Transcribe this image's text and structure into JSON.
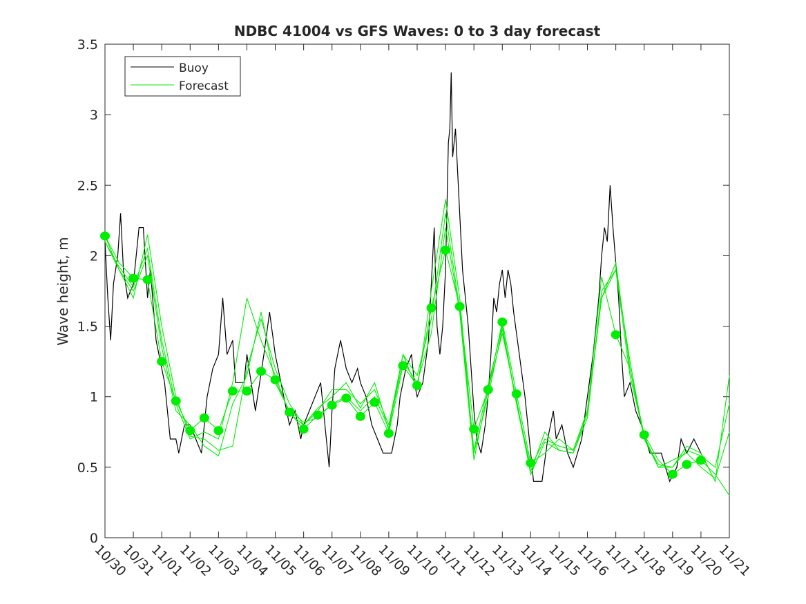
{
  "chart_data": {
    "type": "line",
    "title": "NDBC 41004 vs GFS Waves: 0 to 3 day forecast",
    "xlabel": "",
    "ylabel": "Wave height, m",
    "ylim": [
      0,
      3.5
    ],
    "yticks": [
      "0",
      "0.5",
      "1",
      "1.5",
      "2",
      "2.5",
      "3",
      "3.5"
    ],
    "xlim_days": [
      0,
      22
    ],
    "xticks": [
      "10/30",
      "10/31",
      "11/01",
      "11/02",
      "11/03",
      "11/04",
      "11/05",
      "11/06",
      "11/07",
      "11/08",
      "11/09",
      "11/10",
      "11/11",
      "11/12",
      "11/13",
      "11/14",
      "11/15",
      "11/16",
      "11/17",
      "11/18",
      "11/19",
      "11/20",
      "11/21"
    ],
    "legend": {
      "placement": "top-left",
      "entries": [
        "Buoy",
        "Forecast"
      ]
    },
    "colors": {
      "buoy": "#000000",
      "forecast": "#00ee00"
    },
    "buoy": {
      "x_days": [
        0,
        0.1,
        0.2,
        0.3,
        0.45,
        0.55,
        0.65,
        0.8,
        1.0,
        1.1,
        1.2,
        1.35,
        1.5,
        1.6,
        1.8,
        2.0,
        2.1,
        2.2,
        2.3,
        2.5,
        2.6,
        2.8,
        3.0,
        3.2,
        3.4,
        3.6,
        3.8,
        4.0,
        4.15,
        4.3,
        4.5,
        4.6,
        4.9,
        5.0,
        5.3,
        5.6,
        5.8,
        6.0,
        6.3,
        6.5,
        6.7,
        6.9,
        7.0,
        7.2,
        7.4,
        7.6,
        7.7,
        7.8,
        7.9,
        8.0,
        8.1,
        8.2,
        8.3,
        8.5,
        8.7,
        8.9,
        9.0,
        9.2,
        9.4,
        9.6,
        9.8,
        10.1,
        10.3,
        10.4,
        10.6,
        10.8,
        10.9,
        11.0,
        11.2,
        11.4,
        11.5,
        11.6,
        11.7,
        11.8,
        11.9,
        12.0,
        12.1,
        12.15,
        12.2,
        12.25,
        12.35,
        12.5,
        12.6,
        12.8,
        13.0,
        13.1,
        13.25,
        13.4,
        13.5,
        13.6,
        13.7,
        13.8,
        13.9,
        14.0,
        14.1,
        14.2,
        14.3,
        14.4,
        14.6,
        14.8,
        15.0,
        15.1,
        15.4,
        15.6,
        15.8,
        15.9,
        16.1,
        16.3,
        16.5,
        16.8,
        17.0,
        17.2,
        17.4,
        17.5,
        17.6,
        17.7,
        17.8,
        17.9,
        18.1,
        18.2,
        18.3,
        18.5,
        18.7,
        18.9,
        19.2,
        19.6,
        19.9,
        20.15,
        20.3,
        20.5,
        20.75,
        21.0,
        21.25
      ],
      "values": [
        2.1,
        1.7,
        1.4,
        1.8,
        2.0,
        2.3,
        1.9,
        1.7,
        1.8,
        2.0,
        2.2,
        2.2,
        1.7,
        1.9,
        1.4,
        1.2,
        1.1,
        0.9,
        0.7,
        0.7,
        0.6,
        0.8,
        0.8,
        0.7,
        0.6,
        1.0,
        1.2,
        1.3,
        1.7,
        1.3,
        1.4,
        1.1,
        1.1,
        1.3,
        0.9,
        1.3,
        1.6,
        1.3,
        1.0,
        0.8,
        0.9,
        0.7,
        0.8,
        0.9,
        1.0,
        1.1,
        0.9,
        0.7,
        0.5,
        0.9,
        1.2,
        1.3,
        1.4,
        1.2,
        1.1,
        1.2,
        1.1,
        1.0,
        0.8,
        0.7,
        0.6,
        0.6,
        0.8,
        1.0,
        1.2,
        1.3,
        1.1,
        1.0,
        1.1,
        1.4,
        1.8,
        2.2,
        1.5,
        1.3,
        1.5,
        1.9,
        2.8,
        2.9,
        3.3,
        2.7,
        2.9,
        2.3,
        1.9,
        1.5,
        0.9,
        0.7,
        0.6,
        0.8,
        1.0,
        1.3,
        1.7,
        1.6,
        1.8,
        1.9,
        1.7,
        1.9,
        1.8,
        1.6,
        1.3,
        1.0,
        0.6,
        0.4,
        0.4,
        0.7,
        0.9,
        0.7,
        0.8,
        0.6,
        0.5,
        0.7,
        1.0,
        1.3,
        1.7,
        2.0,
        2.2,
        2.1,
        2.5,
        2.2,
        1.7,
        1.3,
        1.0,
        1.1,
        0.9,
        0.8,
        0.6,
        0.6,
        0.4,
        0.5,
        0.7,
        0.6,
        0.7,
        0.6,
        0.5
      ]
    },
    "forecast_x_step_days": 0.5,
    "forecast_series": [
      {
        "name": "Forecast",
        "values": [
          2.14,
          1.95,
          1.84,
          1.83,
          1.25,
          0.97,
          0.76,
          0.85,
          0.76,
          1.04,
          1.04,
          1.18,
          1.12,
          0.89,
          0.77,
          0.87,
          0.94,
          0.99,
          0.86,
          0.96,
          0.74,
          1.22,
          1.08,
          1.63,
          2.04,
          1.64,
          0.77,
          1.05,
          1.53,
          1.02,
          0.53,
          0.6,
          0.7,
          0.62,
          0.9,
          1.85,
          1.44,
          1.2,
          0.73,
          0.55,
          0.45,
          0.52,
          0.55,
          0.45,
          0.3
        ]
      },
      {
        "name": "Forecast",
        "values": [
          2.1,
          1.9,
          1.7,
          2.15,
          1.5,
          1.0,
          0.72,
          0.7,
          0.62,
          0.65,
          1.2,
          1.55,
          1.2,
          0.95,
          0.8,
          0.9,
          1.05,
          1.05,
          0.95,
          1.05,
          0.8,
          1.3,
          1.05,
          1.75,
          2.4,
          1.7,
          0.6,
          1.0,
          1.48,
          0.95,
          0.47,
          0.75,
          0.62,
          0.6,
          0.85,
          1.75,
          1.9,
          1.25,
          0.7,
          0.5,
          0.5,
          0.65,
          0.6,
          0.4,
          1.15
        ]
      },
      {
        "name": "Forecast",
        "values": [
          2.14,
          1.9,
          1.75,
          2.0,
          1.35,
          0.9,
          0.8,
          0.65,
          0.58,
          0.95,
          1.15,
          1.6,
          1.1,
          0.9,
          0.82,
          0.85,
          0.95,
          1.0,
          0.9,
          1.0,
          0.78,
          1.25,
          1.1,
          1.45,
          2.2,
          1.6,
          0.55,
          1.05,
          1.45,
          0.98,
          0.45,
          0.68,
          0.62,
          0.6,
          0.88,
          1.7,
          1.9,
          1.15,
          0.72,
          0.5,
          0.55,
          0.6,
          0.5,
          0.42,
          0.75
        ]
      },
      {
        "name": "Forecast",
        "values": [
          2.1,
          1.92,
          1.78,
          2.05,
          1.4,
          0.95,
          0.7,
          0.75,
          0.7,
          1.1,
          1.7,
          1.4,
          1.15,
          0.88,
          0.8,
          0.92,
          1.0,
          1.1,
          0.92,
          1.1,
          0.76,
          1.3,
          1.15,
          1.55,
          2.3,
          1.62,
          0.62,
          1.08,
          1.5,
          0.96,
          0.5,
          0.7,
          0.65,
          0.62,
          0.9,
          1.7,
          1.95,
          1.2,
          0.7,
          0.52,
          0.5,
          0.62,
          0.58,
          0.5,
          0.95
        ]
      }
    ],
    "analysis_points": {
      "x_days": [
        0,
        1,
        1.5,
        2,
        2.5,
        3,
        3.5,
        4,
        4.5,
        5,
        5.5,
        6,
        6.5,
        7,
        7.5,
        8,
        8.5,
        9,
        9.5,
        10,
        10.5,
        11,
        11.5,
        12,
        12.5,
        13,
        13.5,
        14,
        14.5,
        15,
        18,
        19,
        20,
        20.5,
        21
      ],
      "values": [
        2.14,
        1.84,
        1.83,
        1.25,
        0.97,
        0.76,
        0.85,
        0.76,
        1.04,
        1.04,
        1.18,
        1.12,
        0.89,
        0.77,
        0.87,
        0.94,
        0.99,
        0.86,
        0.96,
        0.74,
        1.22,
        1.08,
        1.63,
        2.04,
        1.64,
        0.77,
        1.05,
        1.53,
        1.02,
        0.53,
        1.44,
        0.73,
        0.45,
        0.52,
        0.55
      ]
    }
  }
}
